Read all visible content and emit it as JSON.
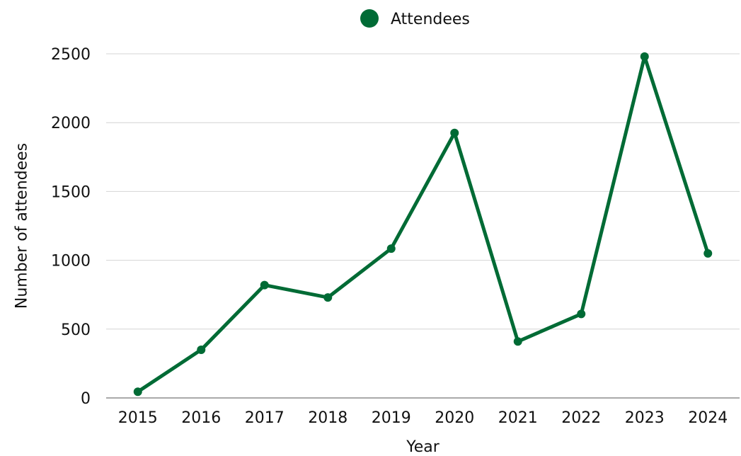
{
  "chart_data": {
    "type": "line",
    "title": "",
    "xlabel": "Year",
    "ylabel": "Number of attendees",
    "categories": [
      "2015",
      "2016",
      "2017",
      "2018",
      "2019",
      "2020",
      "2021",
      "2022",
      "2023",
      "2024"
    ],
    "series": [
      {
        "name": "Attendees",
        "color": "#006b35",
        "values": [
          45,
          350,
          820,
          730,
          1085,
          1925,
          410,
          610,
          2480,
          1050
        ]
      }
    ],
    "ylim": [
      0,
      2500
    ],
    "yticks": [
      "0",
      "500",
      "1000",
      "1500",
      "2000",
      "2500"
    ],
    "grid": "horizontal",
    "legend": "top-center",
    "colors": {
      "line": "#006b35",
      "grid": "#d4d4d4",
      "text": "#111111"
    }
  }
}
